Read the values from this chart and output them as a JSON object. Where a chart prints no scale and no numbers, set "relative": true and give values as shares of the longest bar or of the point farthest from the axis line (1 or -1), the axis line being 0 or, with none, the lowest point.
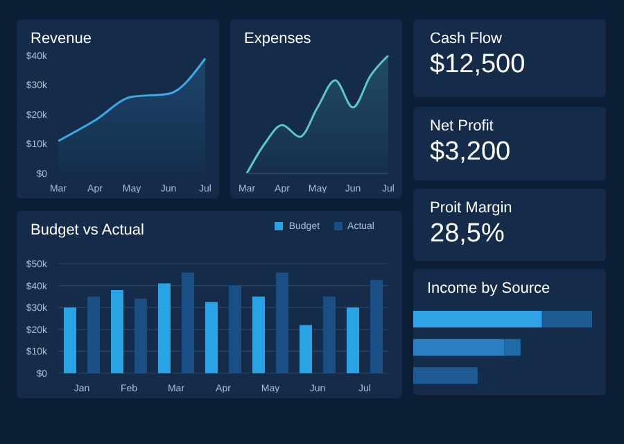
{
  "chart_data": [
    {
      "type": "area",
      "title": "Revenue",
      "categories": [
        "Mar",
        "Apr",
        "May",
        "Jun",
        "Jul"
      ],
      "values": [
        11000,
        18000,
        26000,
        27000,
        39000
      ],
      "color": "#3fa9e8",
      "ylim": [
        0,
        40000
      ],
      "yticks": [
        {
          "value": 0,
          "label": "$0"
        },
        {
          "value": 10000,
          "label": "$10k"
        },
        {
          "value": 20000,
          "label": "$20k"
        },
        {
          "value": 30000,
          "label": "$30k"
        },
        {
          "value": 40000,
          "label": "$40k"
        }
      ]
    },
    {
      "type": "area",
      "title": "Expenses",
      "relative": true,
      "categories": [
        "Mar",
        null,
        "Apr",
        null,
        "May",
        null,
        "Jun",
        null,
        "Jul"
      ],
      "values": [
        0,
        0.25,
        0.41,
        0.31,
        0.56,
        0.79,
        0.56,
        0.83,
        1
      ],
      "color": "#5cc6c9",
      "tick_labels": "x"
    },
    {
      "type": "other",
      "title": "Cash Flow",
      "annotations": [
        "$12,500"
      ]
    },
    {
      "type": "other",
      "title": "Net Profit",
      "annotations": [
        "$3,200"
      ]
    },
    {
      "type": "other",
      "title": "Proit Margin",
      "annotations": [
        "28,5%"
      ]
    },
    {
      "type": "bar",
      "title": "Budget vs Actual",
      "categories": [
        "Jan",
        "Feb",
        "Mar",
        "Apr",
        "May",
        "Jun",
        "Jul"
      ],
      "series": [
        {
          "name": "Budget",
          "color": "#29a3e3",
          "values": [
            30000,
            38000,
            41000,
            32500,
            35000,
            22000,
            30000
          ]
        },
        {
          "name": "Actual",
          "color": "#1a4f86",
          "values": [
            35000,
            34000,
            46000,
            40000,
            46000,
            35000,
            42500
          ]
        }
      ],
      "ylim": [
        0,
        50000
      ],
      "yticks": [
        {
          "value": 0,
          "label": "$0"
        },
        {
          "value": 10000,
          "label": "$10k"
        },
        {
          "value": 20000,
          "label": "$20k"
        },
        {
          "value": 30000,
          "label": "$30k"
        },
        {
          "value": 40000,
          "label": "$40k"
        },
        {
          "value": 50000,
          "label": "$50k"
        }
      ],
      "grid": "y",
      "legend": "top right"
    },
    {
      "type": "bar",
      "title": "Income by Source",
      "relative": true,
      "orientation": "horizontal",
      "stacked": true,
      "categories": [
        null,
        null,
        null
      ],
      "series": [
        {
          "colors": [
            "#2fa3e6",
            "#2a7ec2",
            "#1d5a93"
          ],
          "values": [
            0.72,
            0.51,
            0.36
          ]
        },
        {
          "colors": [
            "#1d5a93",
            "#1f6aa8",
            "#1d5a93"
          ],
          "values": [
            0.28,
            0.09,
            null
          ]
        }
      ],
      "tick_labels": false
    }
  ]
}
